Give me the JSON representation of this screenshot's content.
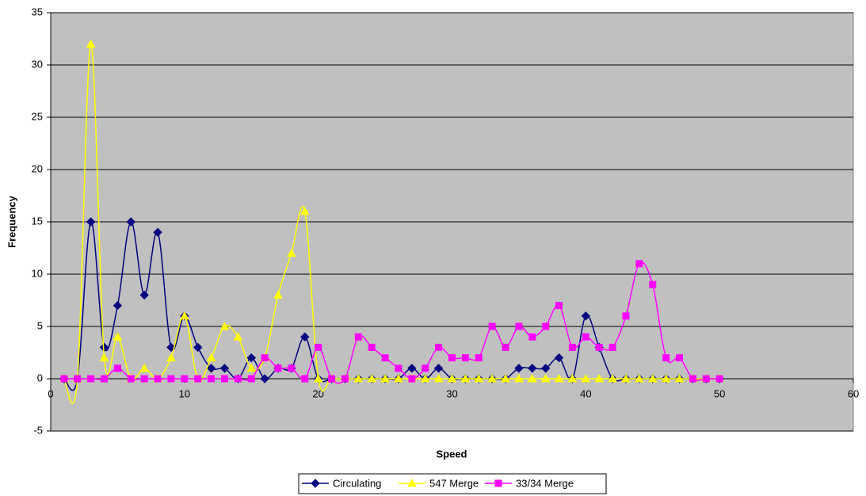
{
  "chart_data": {
    "type": "line",
    "x_label": "Speed",
    "y_label": "Frequency",
    "x": [
      1,
      2,
      3,
      4,
      5,
      6,
      7,
      8,
      9,
      10,
      11,
      12,
      13,
      14,
      15,
      16,
      17,
      18,
      19,
      20,
      21,
      22,
      23,
      24,
      25,
      26,
      27,
      28,
      29,
      30,
      31,
      32,
      33,
      34,
      35,
      36,
      37,
      38,
      39,
      40,
      41,
      42,
      43,
      44,
      45,
      46,
      47,
      48,
      49,
      50
    ],
    "series": [
      {
        "name": "Circulating",
        "color": "#000080",
        "marker": "diamond",
        "values": [
          0,
          0,
          15,
          3,
          7,
          15,
          8,
          14,
          3,
          6,
          3,
          1,
          1,
          0,
          2,
          0,
          1,
          1,
          4,
          0,
          0,
          0,
          0,
          0,
          0,
          0,
          1,
          0,
          1,
          0,
          0,
          0,
          0,
          0,
          1,
          1,
          1,
          2,
          0,
          6,
          3,
          0,
          0,
          0,
          0,
          0,
          0,
          0,
          0,
          0
        ]
      },
      {
        "name": "547 Merge",
        "color": "#ffff00",
        "marker": "triangle",
        "values": [
          0,
          0,
          32,
          2,
          4,
          0,
          1,
          0,
          2,
          6,
          0,
          2,
          5,
          4,
          1,
          2,
          8,
          12,
          16,
          0,
          0,
          0,
          0,
          0,
          0,
          0,
          0,
          0,
          0,
          0,
          0,
          0,
          0,
          0,
          0,
          0,
          0,
          0,
          0,
          0,
          0,
          0,
          0,
          0,
          0,
          0,
          0,
          0,
          0,
          0
        ]
      },
      {
        "name": "33/34 Merge",
        "color": "#ff00ff",
        "marker": "square",
        "values": [
          0,
          0,
          0,
          0,
          1,
          0,
          0,
          0,
          0,
          0,
          0,
          0,
          0,
          0,
          0,
          2,
          1,
          1,
          0,
          3,
          0,
          0,
          4,
          3,
          2,
          1,
          0,
          1,
          3,
          2,
          2,
          2,
          5,
          3,
          5,
          4,
          5,
          7,
          3,
          4,
          3,
          3,
          6,
          11,
          9,
          2,
          2,
          0,
          0,
          0
        ]
      }
    ],
    "xlim": [
      0,
      60
    ],
    "xticks": [
      0,
      10,
      20,
      30,
      40,
      50,
      60
    ],
    "ylim": [
      -5,
      35
    ],
    "yticks": [
      -5,
      0,
      5,
      10,
      15,
      20,
      25,
      30,
      35
    ],
    "grid": true,
    "legend": "bottom",
    "plot_background": "#c0c0c0"
  }
}
